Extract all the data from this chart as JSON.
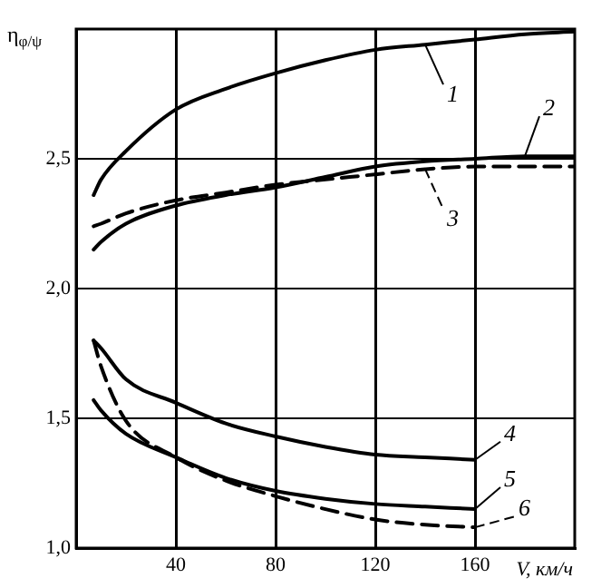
{
  "chart_data": {
    "type": "line",
    "xlabel": "V, км/ч",
    "ylabel": "η$_{φ/ψ}$",
    "x": [
      7,
      10,
      20,
      40,
      60,
      80,
      100,
      120,
      140,
      160,
      180,
      200
    ],
    "series": [
      {
        "name": "1",
        "color": "#000000",
        "line_style": "solid",
        "values": [
          2.36,
          2.42,
          2.53,
          2.69,
          2.77,
          2.83,
          2.88,
          2.92,
          2.94,
          2.96,
          2.98,
          2.99
        ]
      },
      {
        "name": "2",
        "color": "#000000",
        "line_style": "solid",
        "values": [
          2.15,
          2.18,
          2.25,
          2.32,
          2.36,
          2.39,
          2.43,
          2.47,
          2.49,
          2.5,
          2.51,
          2.51
        ]
      },
      {
        "name": "3",
        "color": "#000000",
        "line_style": "dashed",
        "values": [
          2.24,
          2.25,
          2.29,
          2.34,
          2.37,
          2.4,
          2.42,
          2.44,
          2.46,
          2.47,
          2.47,
          2.47
        ]
      },
      {
        "name": "4",
        "color": "#000000",
        "line_style": "solid",
        "values": [
          1.8,
          1.77,
          1.65,
          1.56,
          1.48,
          1.43,
          1.39,
          1.36,
          1.35,
          1.34,
          null,
          null
        ]
      },
      {
        "name": "5",
        "color": "#000000",
        "line_style": "solid",
        "values": [
          1.57,
          1.53,
          1.44,
          1.35,
          1.27,
          1.22,
          1.19,
          1.17,
          1.16,
          1.15,
          null,
          null
        ]
      },
      {
        "name": "6",
        "color": "#000000",
        "line_style": "dashed",
        "values": [
          1.8,
          1.7,
          1.49,
          1.35,
          1.26,
          1.2,
          1.15,
          1.11,
          1.09,
          1.08,
          null,
          null
        ]
      }
    ],
    "xlim": [
      0,
      200
    ],
    "xticks": [
      40,
      80,
      120,
      160
    ],
    "ylim": [
      1,
      3
    ],
    "yticks": [
      {
        "value": 1,
        "label": "1,0"
      },
      {
        "value": 1.5,
        "label": "1,5"
      },
      {
        "value": 2,
        "label": "2,0"
      },
      {
        "value": 2.5,
        "label": "2,5"
      }
    ],
    "grid": true,
    "legend": "right",
    "marker": "none"
  }
}
